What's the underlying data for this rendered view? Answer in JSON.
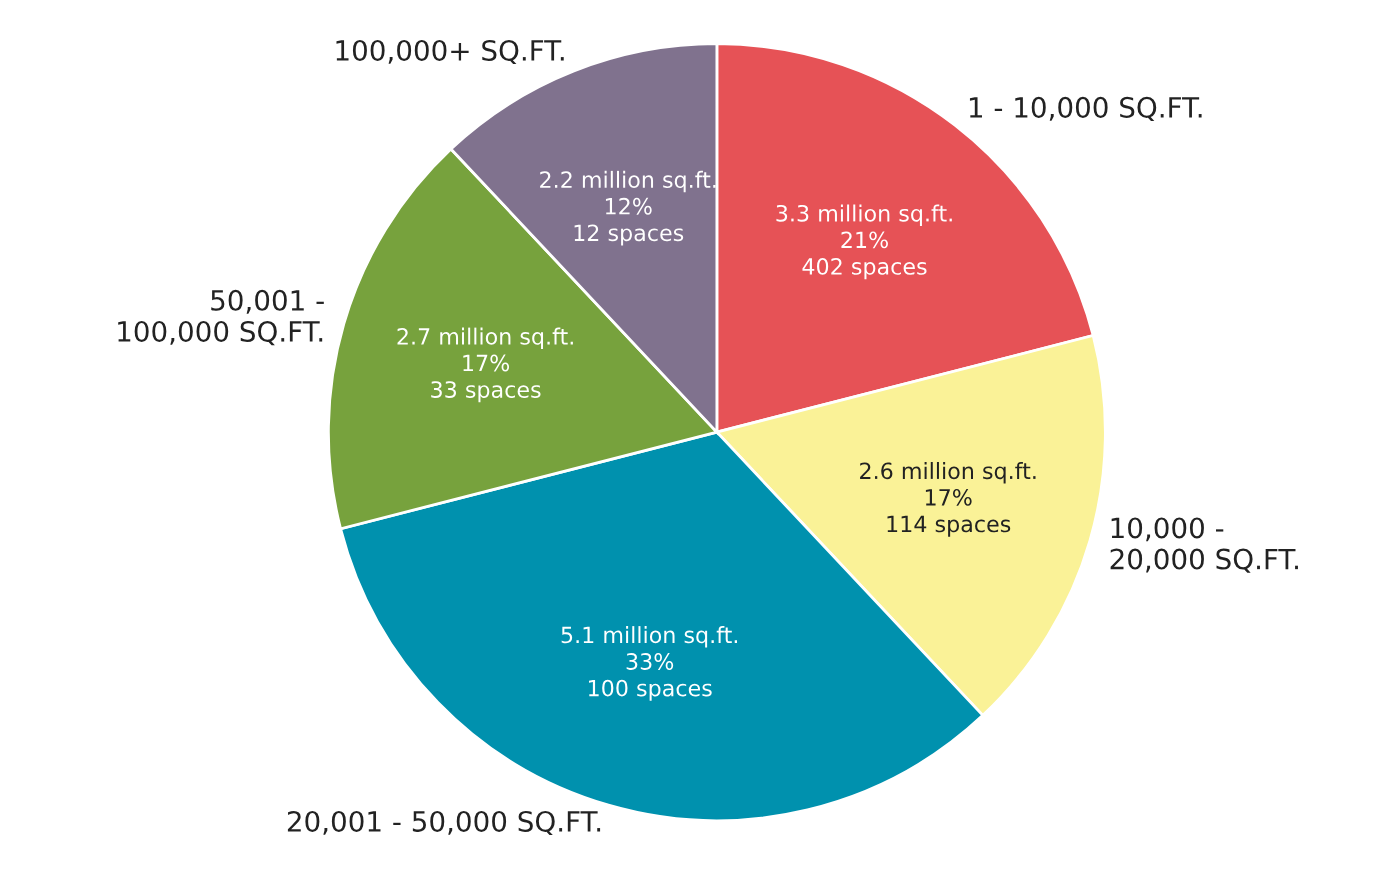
{
  "chart_data": {
    "type": "pie",
    "categories": [
      "1 - 10,000 SQ.FT.",
      "10,000 -\n20,000 SQ.FT.",
      "20,001 - 50,000 SQ.FT.",
      "50,001 -\n100,000 SQ.FT.",
      "100,000+ SQ.FT."
    ],
    "values": [
      21,
      17,
      33,
      17,
      12
    ],
    "colors": [
      "#e65256",
      "#faf297",
      "#0091ae",
      "#77a23d",
      "#80728e"
    ],
    "value_labels": [
      "3.3 million sq.ft.\n21%\n402 spaces",
      "2.6 million sq.ft.\n17%\n114 spaces",
      "5.1 million sq.ft.\n33%\n100 spaces",
      "2.7 million sq.ft.\n17%\n33 spaces",
      "2.2 million sq.ft.\n12%\n12 spaces"
    ],
    "legend": false
  }
}
